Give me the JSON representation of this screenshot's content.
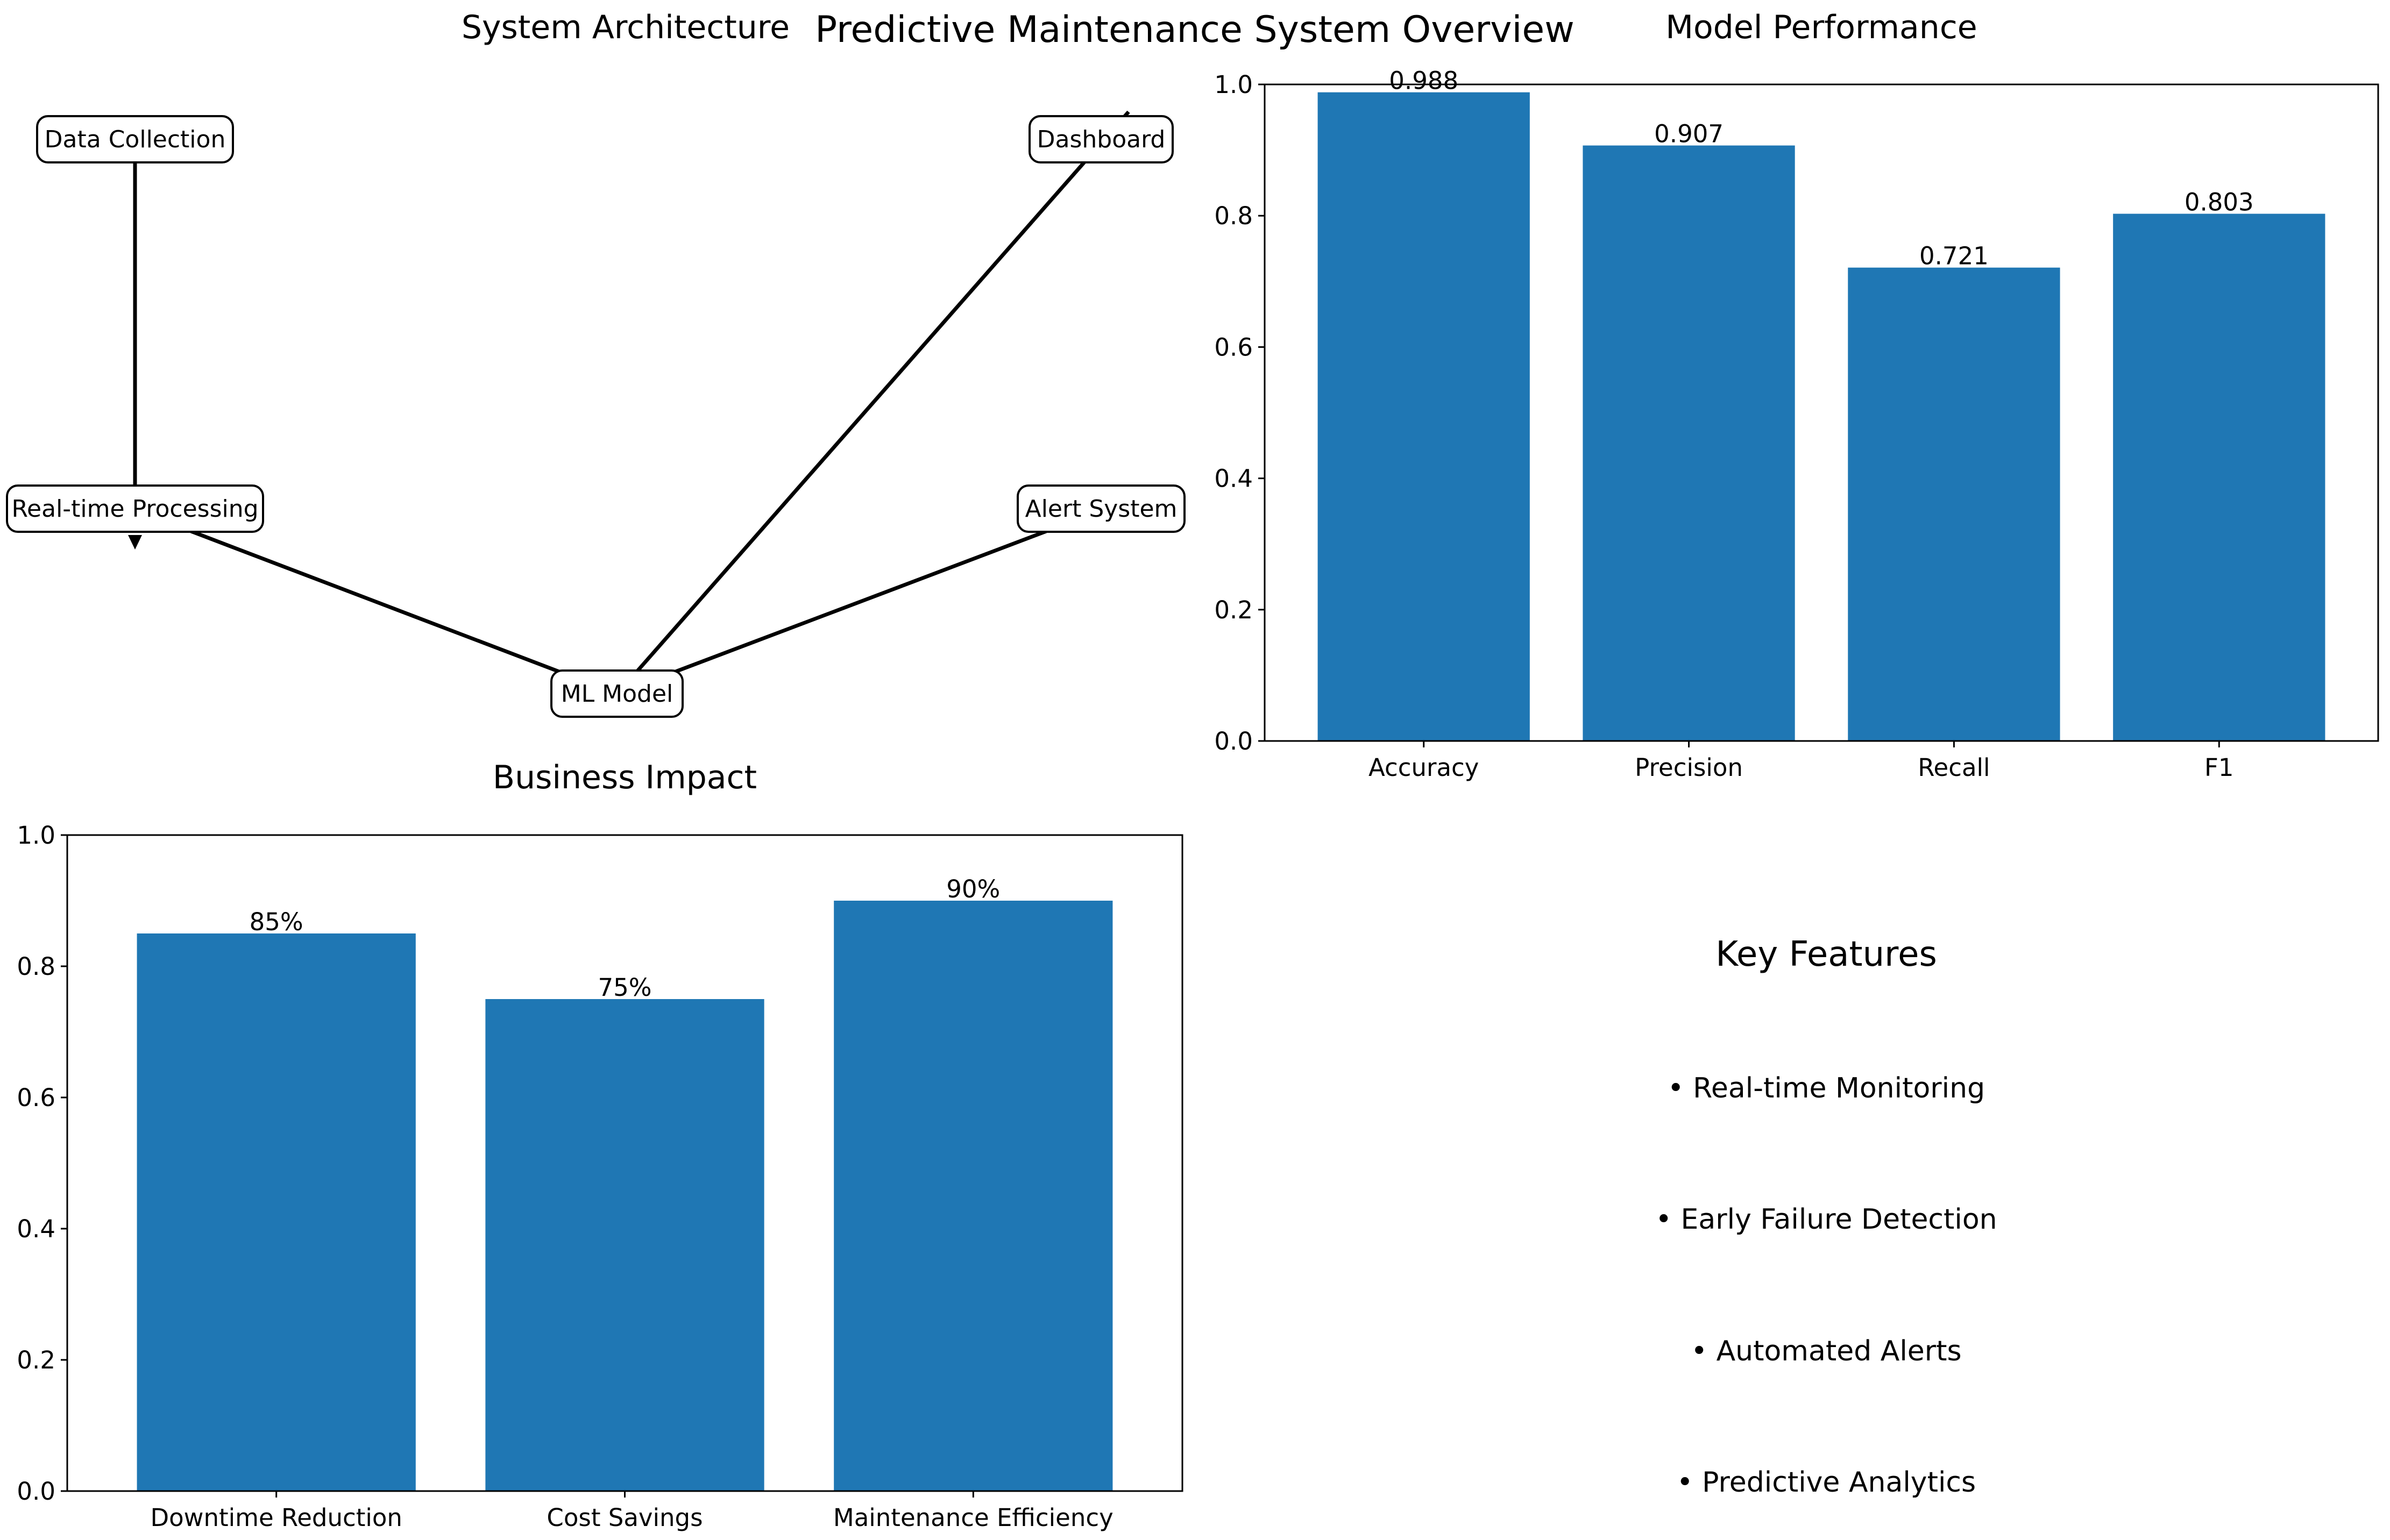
{
  "figure_title": "Predictive Maintenance System Overview",
  "architecture": {
    "title": "System Architecture",
    "nodes": [
      {
        "id": "collect",
        "label": "Data Collection"
      },
      {
        "id": "process",
        "label": "Real-time Processing"
      },
      {
        "id": "model",
        "label": "ML Model"
      },
      {
        "id": "alert",
        "label": "Alert System"
      },
      {
        "id": "dash",
        "label": "Dashboard"
      }
    ],
    "edges": [
      [
        "collect",
        "process"
      ],
      [
        "process",
        "model"
      ],
      [
        "model",
        "alert"
      ],
      [
        "model",
        "dash"
      ]
    ]
  },
  "key_features": {
    "title": "Key Features",
    "items": [
      "• Real-time Monitoring",
      "• Early Failure Detection",
      "• Automated Alerts",
      "• Predictive Analytics"
    ]
  },
  "chart_data": [
    {
      "type": "bar",
      "title": "Model Performance",
      "categories": [
        "Accuracy",
        "Precision",
        "Recall",
        "F1"
      ],
      "values": [
        0.988,
        0.907,
        0.721,
        0.803
      ],
      "value_labels": [
        "0.988",
        "0.907",
        "0.721",
        "0.803"
      ],
      "xlabel": "",
      "ylabel": "",
      "ylim": [
        0,
        1.0
      ],
      "yticks": [
        "0.0",
        "0.2",
        "0.4",
        "0.6",
        "0.8",
        "1.0"
      ],
      "color": "#1f77b4",
      "grid": false
    },
    {
      "type": "bar",
      "title": "Business Impact",
      "categories": [
        "Downtime Reduction",
        "Cost Savings",
        "Maintenance Efficiency"
      ],
      "values": [
        0.85,
        0.75,
        0.9
      ],
      "value_labels": [
        "85%",
        "75%",
        "90%"
      ],
      "xlabel": "",
      "ylabel": "",
      "ylim": [
        0,
        1.0
      ],
      "yticks": [
        "0.0",
        "0.2",
        "0.4",
        "0.6",
        "0.8",
        "1.0"
      ],
      "color": "#1f77b4",
      "grid": false
    }
  ]
}
